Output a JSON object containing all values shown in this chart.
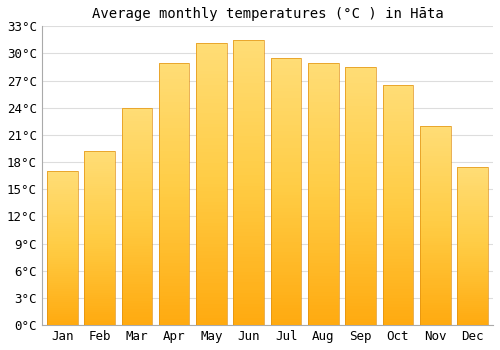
{
  "title": "Average monthly temperatures (°C ) in Hāta",
  "months": [
    "Jan",
    "Feb",
    "Mar",
    "Apr",
    "May",
    "Jun",
    "Jul",
    "Aug",
    "Sep",
    "Oct",
    "Nov",
    "Dec"
  ],
  "values": [
    17,
    19.2,
    24,
    29,
    31.2,
    31.5,
    29.5,
    29,
    28.5,
    26.5,
    22,
    17.5
  ],
  "ylim": [
    0,
    33
  ],
  "yticks": [
    0,
    3,
    6,
    9,
    12,
    15,
    18,
    21,
    24,
    27,
    30,
    33
  ],
  "ytick_labels": [
    "0°C",
    "3°C",
    "6°C",
    "9°C",
    "12°C",
    "15°C",
    "18°C",
    "21°C",
    "24°C",
    "27°C",
    "30°C",
    "33°C"
  ],
  "bar_color_main": "#FFBB33",
  "bar_color_light": "#FFD878",
  "bar_edge_color": "#E09010",
  "background_color": "#ffffff",
  "plot_bg_color": "#ffffff",
  "title_fontsize": 10,
  "tick_fontsize": 9,
  "grid_color": "#dddddd",
  "bar_width": 0.82
}
